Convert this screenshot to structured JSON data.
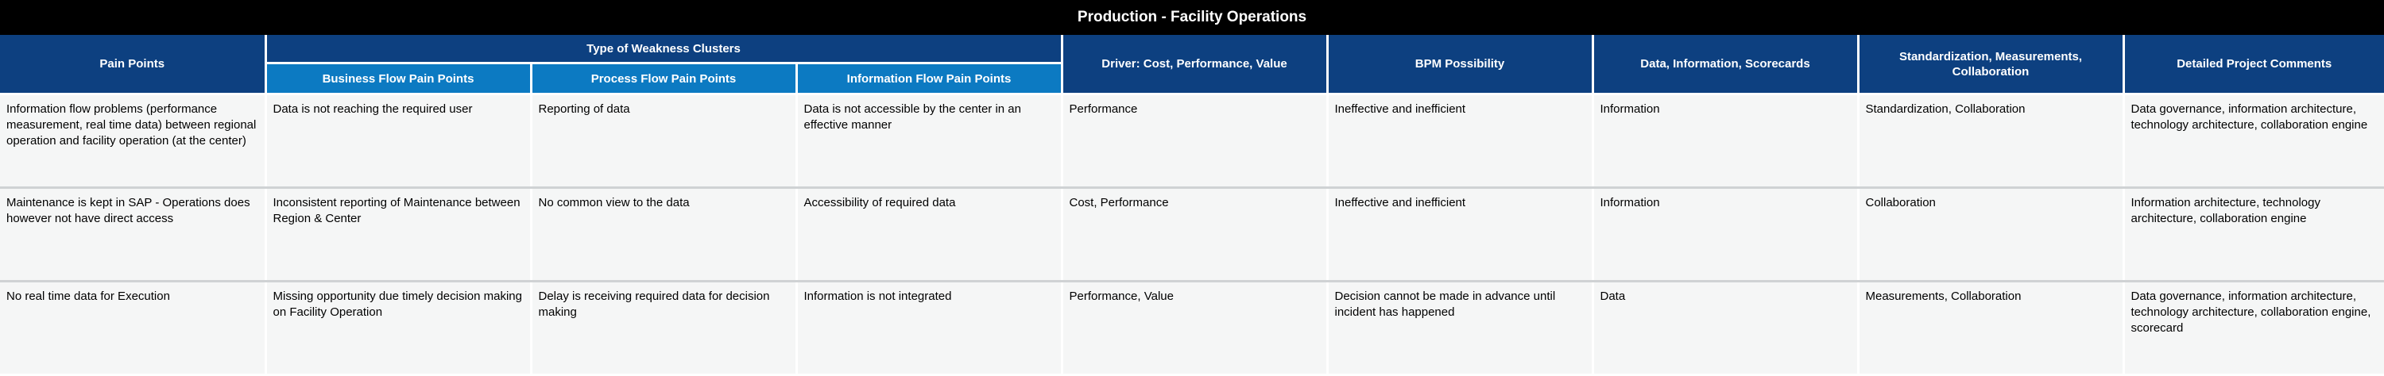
{
  "title": "Production - Facility Operations",
  "headers": {
    "pain_points": "Pain Points",
    "type_of_weakness": "Type of Weakness Clusters",
    "business_flow": "Business Flow Pain Points",
    "process_flow": "Process Flow Pain Points",
    "information_flow": "Information Flow Pain Points",
    "driver": "Driver: Cost, Performance, Value",
    "bpm": "BPM Possibility",
    "data_info": "Data, Information, Scorecards",
    "standardization": "Standardization, Measurements, Collaboration",
    "comments": "Detailed Project Comments"
  },
  "rows": [
    {
      "pain_point": "Information flow problems (performance measurement, real time data) between regional operation and facility operation (at the center)",
      "business_flow": "Data is not reaching the required user",
      "process_flow": "Reporting of data",
      "information_flow": "Data is not accessible by the center in an effective manner",
      "driver": "Performance",
      "bpm": "Ineffective and inefficient",
      "data_info": "Information",
      "standardization": "Standardization, Collaboration",
      "comments": "Data governance, information architecture, technology architecture, collaboration engine"
    },
    {
      "pain_point": "Maintenance is kept in SAP - Operations does however not have direct access",
      "business_flow": "Inconsistent reporting of Maintenance between Region & Center",
      "process_flow": "No common view to the data",
      "information_flow": "Accessibility of required data",
      "driver": "Cost, Performance",
      "bpm": "Ineffective and inefficient",
      "data_info": "Information",
      "standardization": "Collaboration",
      "comments": "Information architecture, technology architecture, collaboration engine"
    },
    {
      "pain_point": "No real time data for Execution",
      "business_flow": "Missing opportunity due timely decision making on Facility Operation",
      "process_flow": "Delay is receiving required data for decision making",
      "information_flow": "Information is not integrated",
      "driver": "Performance, Value",
      "bpm": "Decision cannot be made in advance until incident has happened",
      "data_info": "Data",
      "standardization": "Measurements, Collaboration",
      "comments": "Data governance, information architecture, technology architecture, collaboration engine, scorecard"
    }
  ]
}
